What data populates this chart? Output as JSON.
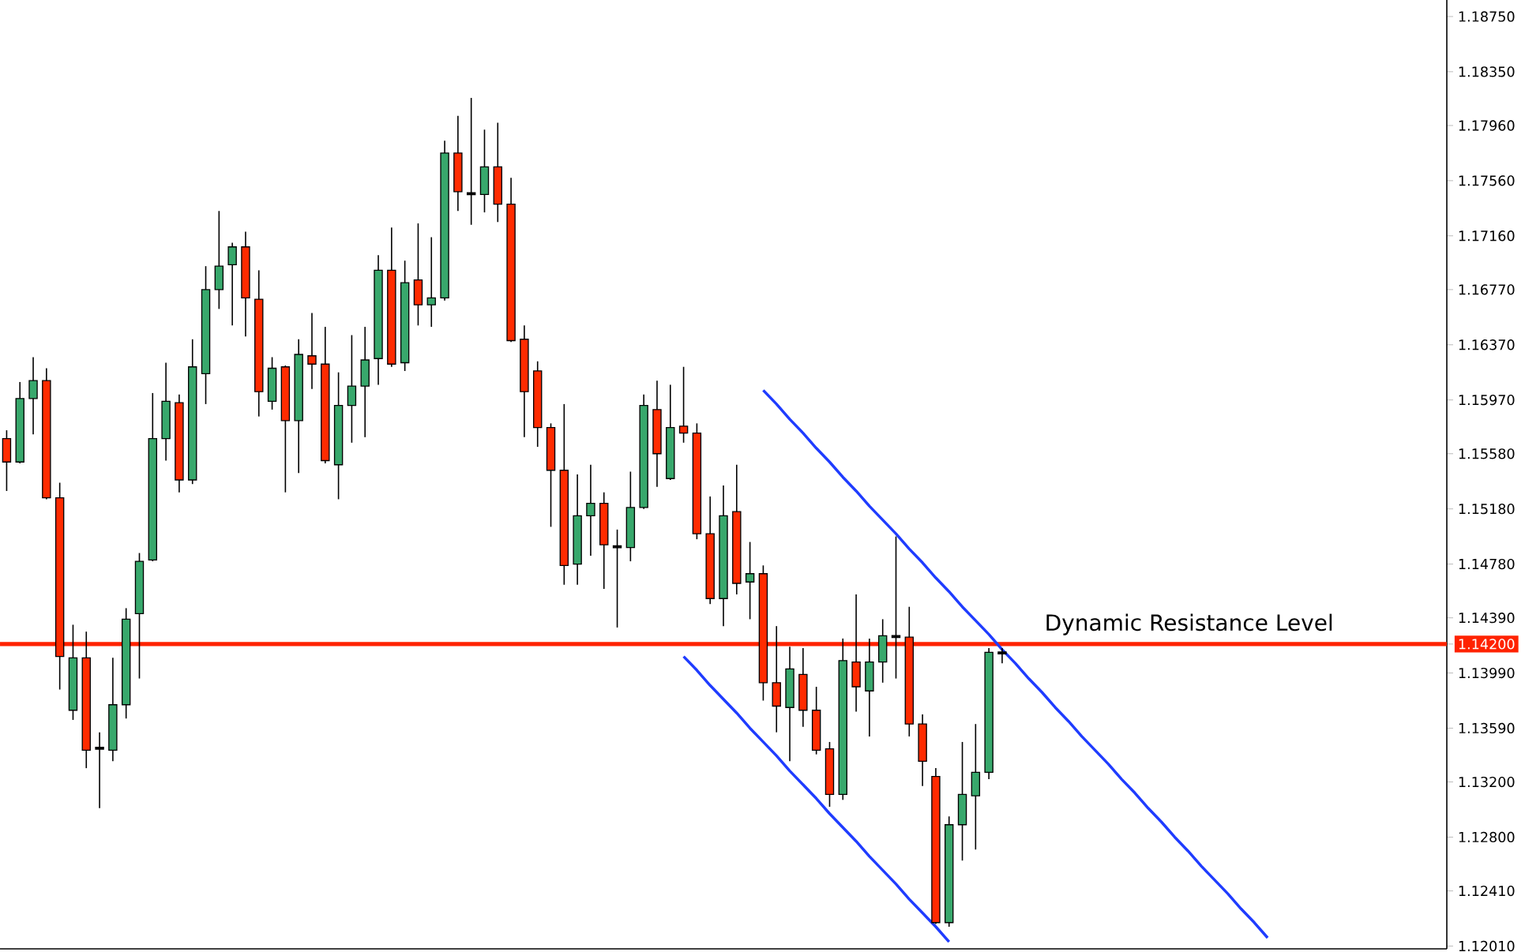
{
  "chart_data": {
    "type": "candlestick",
    "categories": [
      null,
      null,
      null,
      null,
      null,
      null,
      null,
      null,
      null,
      null,
      null,
      null,
      null,
      null,
      null,
      null,
      null,
      null,
      null,
      null,
      null,
      null,
      null,
      null,
      null,
      null,
      null,
      null,
      null,
      null,
      null,
      null,
      null,
      null,
      null,
      null,
      null,
      null,
      null,
      null,
      null,
      null,
      null,
      null,
      null,
      null,
      null,
      null,
      null,
      null,
      null,
      null,
      null,
      null,
      null,
      null,
      null,
      null,
      null,
      null,
      null,
      null,
      null,
      null,
      null,
      null,
      null,
      null,
      null,
      null,
      null,
      null,
      null,
      null,
      null,
      null,
      null,
      null,
      null,
      null,
      null,
      null,
      null,
      null,
      null,
      null,
      null,
      null,
      null,
      null,
      null,
      null,
      null,
      null,
      null,
      null,
      null,
      null,
      null,
      null,
      null,
      null,
      null,
      null,
      null,
      null,
      null,
      null,
      null
    ],
    "ohlc": [
      [
        1.1569,
        1.1575,
        1.1531,
        1.1552
      ],
      [
        1.1552,
        1.161,
        1.1551,
        1.1598
      ],
      [
        1.1598,
        1.1628,
        1.1572,
        1.1611
      ],
      [
        1.1611,
        1.162,
        1.1525,
        1.1526
      ],
      [
        1.1526,
        1.1537,
        1.1387,
        1.1411
      ],
      [
        1.1372,
        1.1434,
        1.1365,
        1.141
      ],
      [
        1.141,
        1.1429,
        1.133,
        1.1343
      ],
      [
        1.1345,
        1.1356,
        1.1301,
        1.1344
      ],
      [
        1.1343,
        1.141,
        1.1335,
        1.1376
      ],
      [
        1.1376,
        1.1446,
        1.1366,
        1.1438
      ],
      [
        1.1442,
        1.1486,
        1.1395,
        1.148
      ],
      [
        1.1481,
        1.1602,
        1.148,
        1.1569
      ],
      [
        1.1569,
        1.1624,
        1.1553,
        1.1596
      ],
      [
        1.1595,
        1.1601,
        1.153,
        1.1539
      ],
      [
        1.1539,
        1.1641,
        1.1536,
        1.1621
      ],
      [
        1.1616,
        1.1694,
        1.1594,
        1.1677
      ],
      [
        1.1677,
        1.1734,
        1.1663,
        1.1694
      ],
      [
        1.1695,
        1.1711,
        1.1651,
        1.1708
      ],
      [
        1.1708,
        1.1719,
        1.1643,
        1.1671
      ],
      [
        1.167,
        1.1691,
        1.1585,
        1.1603
      ],
      [
        1.1596,
        1.1628,
        1.159,
        1.162
      ],
      [
        1.1621,
        1.1622,
        1.153,
        1.1582
      ],
      [
        1.1582,
        1.1641,
        1.1544,
        1.163
      ],
      [
        1.1629,
        1.166,
        1.1605,
        1.1623
      ],
      [
        1.1623,
        1.165,
        1.1551,
        1.1553
      ],
      [
        1.155,
        1.1617,
        1.1525,
        1.1593
      ],
      [
        1.1593,
        1.1644,
        1.1566,
        1.1607
      ],
      [
        1.1607,
        1.165,
        1.157,
        1.1626
      ],
      [
        1.1627,
        1.1702,
        1.1608,
        1.1691
      ],
      [
        1.1691,
        1.1722,
        1.1621,
        1.1623
      ],
      [
        1.1624,
        1.1698,
        1.1618,
        1.1682
      ],
      [
        1.1684,
        1.1725,
        1.1651,
        1.1666
      ],
      [
        1.1666,
        1.1715,
        1.165,
        1.1671
      ],
      [
        1.1671,
        1.1785,
        1.1669,
        1.1776
      ],
      [
        1.1776,
        1.1803,
        1.1734,
        1.1748
      ],
      [
        1.1747,
        1.1816,
        1.1724,
        1.1746
      ],
      [
        1.1746,
        1.1793,
        1.1733,
        1.1766
      ],
      [
        1.1766,
        1.1798,
        1.1726,
        1.1739
      ],
      [
        1.1739,
        1.1758,
        1.1639,
        1.164
      ],
      [
        1.1641,
        1.1651,
        1.157,
        1.1603
      ],
      [
        1.1618,
        1.1625,
        1.1563,
        1.1577
      ],
      [
        1.1577,
        1.158,
        1.1505,
        1.1546
      ],
      [
        1.1546,
        1.1594,
        1.1463,
        1.1477
      ],
      [
        1.1478,
        1.1543,
        1.1463,
        1.1513
      ],
      [
        1.1513,
        1.155,
        1.1484,
        1.1522
      ],
      [
        1.1522,
        1.153,
        1.146,
        1.1492
      ],
      [
        1.1491,
        1.1503,
        1.1432,
        1.149
      ],
      [
        1.149,
        1.1545,
        1.148,
        1.1519
      ],
      [
        1.1519,
        1.1601,
        1.1518,
        1.1593
      ],
      [
        1.159,
        1.1611,
        1.1534,
        1.1558
      ],
      [
        1.154,
        1.1608,
        1.1539,
        1.1577
      ],
      [
        1.1578,
        1.1621,
        1.1566,
        1.1573
      ],
      [
        1.1573,
        1.158,
        1.1496,
        1.15
      ],
      [
        1.15,
        1.1527,
        1.1449,
        1.1453
      ],
      [
        1.1453,
        1.1535,
        1.1433,
        1.1513
      ],
      [
        1.1516,
        1.155,
        1.1456,
        1.1464
      ],
      [
        1.1465,
        1.1494,
        1.1438,
        1.1471
      ],
      [
        1.1471,
        1.1477,
        1.1379,
        1.1392
      ],
      [
        1.1392,
        1.1433,
        1.1356,
        1.1375
      ],
      [
        1.1374,
        1.1418,
        1.1335,
        1.1402
      ],
      [
        1.1398,
        1.1417,
        1.136,
        1.1372
      ],
      [
        1.1372,
        1.1389,
        1.134,
        1.1343
      ],
      [
        1.1344,
        1.1349,
        1.1302,
        1.1311
      ],
      [
        1.1311,
        1.1424,
        1.1307,
        1.1408
      ],
      [
        1.1407,
        1.1456,
        1.1371,
        1.1389
      ],
      [
        1.1386,
        1.1424,
        1.1353,
        1.1407
      ],
      [
        1.1407,
        1.1438,
        1.1392,
        1.1426
      ],
      [
        1.1426,
        1.1498,
        1.1395,
        1.1425
      ],
      [
        1.1425,
        1.1447,
        1.1353,
        1.1362
      ],
      [
        1.1362,
        1.1369,
        1.1317,
        1.1335
      ],
      [
        1.1324,
        1.133,
        1.1217,
        1.1218
      ],
      [
        1.1218,
        1.1295,
        1.1215,
        1.1289
      ],
      [
        1.1289,
        1.1349,
        1.1263,
        1.1311
      ],
      [
        1.131,
        1.1362,
        1.1271,
        1.1327
      ],
      [
        1.1327,
        1.1417,
        1.1322,
        1.1414
      ],
      [
        1.1414,
        1.1417,
        1.1406,
        1.1413
      ],
      null,
      null,
      null,
      null,
      null,
      null,
      null,
      null,
      null,
      null,
      null,
      null,
      null,
      null,
      null,
      null,
      null,
      null,
      null,
      null,
      null,
      null,
      null,
      null,
      null,
      null,
      null,
      null,
      null,
      null,
      null,
      null,
      null
    ],
    "colors": [
      "#ff2b00",
      "#38a86c",
      "#38a86c",
      "#ff2b00",
      "#ff2b00",
      "#38a86c",
      "#ff2b00",
      "#000000",
      "#38a86c",
      "#38a86c",
      "#38a86c",
      "#38a86c",
      "#38a86c",
      "#ff2b00",
      "#38a86c",
      "#38a86c",
      "#38a86c",
      "#38a86c",
      "#ff2b00",
      "#ff2b00",
      "#38a86c",
      "#ff2b00",
      "#38a86c",
      "#ff2b00",
      "#ff2b00",
      "#38a86c",
      "#38a86c",
      "#38a86c",
      "#38a86c",
      "#ff2b00",
      "#38a86c",
      "#ff2b00",
      "#38a86c",
      "#38a86c",
      "#ff2b00",
      "#000000",
      "#38a86c",
      "#ff2b00",
      "#ff2b00",
      "#ff2b00",
      "#ff2b00",
      "#ff2b00",
      "#ff2b00",
      "#38a86c",
      "#38a86c",
      "#ff2b00",
      "#000000",
      "#38a86c",
      "#38a86c",
      "#ff2b00",
      "#38a86c",
      "#ff2b00",
      "#ff2b00",
      "#ff2b00",
      "#38a86c",
      "#ff2b00",
      "#38a86c",
      "#ff2b00",
      "#ff2b00",
      "#38a86c",
      "#ff2b00",
      "#ff2b00",
      "#ff2b00",
      "#38a86c",
      "#ff2b00",
      "#38a86c",
      "#38a86c",
      "#000000",
      "#ff2b00",
      "#ff2b00",
      "#ff2b00",
      "#38a86c",
      "#38a86c",
      "#38a86c",
      "#38a86c",
      "#000000",
      null,
      null,
      null,
      null,
      null,
      null,
      null,
      null,
      null,
      null,
      null,
      null,
      null,
      null,
      null,
      null,
      null,
      null,
      null,
      null,
      null,
      null,
      null,
      null,
      null,
      null,
      null,
      null,
      null,
      null,
      null,
      null,
      null
    ],
    "series": [
      {
        "type": "line",
        "color": "#1f3cff",
        "values": [
          null,
          null,
          null,
          null,
          null,
          null,
          null,
          null,
          null,
          null,
          null,
          null,
          null,
          null,
          null,
          null,
          null,
          null,
          null,
          null,
          null,
          null,
          null,
          null,
          null,
          null,
          null,
          null,
          null,
          null,
          null,
          null,
          null,
          null,
          null,
          null,
          null,
          null,
          null,
          null,
          null,
          null,
          null,
          null,
          null,
          null,
          null,
          null,
          null,
          null,
          null,
          null,
          null,
          null,
          null,
          null,
          null,
          1.1604,
          1.1594,
          1.1583,
          1.1573,
          1.1562,
          1.1552,
          1.1541,
          1.1531,
          1.152,
          1.151,
          1.15,
          1.1489,
          1.1479,
          1.1468,
          1.1458,
          1.1447,
          1.1437,
          1.1427,
          1.1416,
          1.1406,
          1.1395,
          1.1385,
          1.1374,
          1.1364,
          1.1353,
          1.1343,
          1.1333,
          1.1322,
          1.1312,
          1.1301,
          1.1291,
          1.128,
          1.127,
          1.1259,
          1.1249,
          1.1239,
          1.1228,
          1.1218,
          1.1207,
          null,
          null,
          null,
          null,
          null,
          null,
          null,
          null,
          null,
          null,
          null,
          null,
          null
        ]
      },
      {
        "type": "line",
        "color": "#1f3cff",
        "values": [
          null,
          null,
          null,
          null,
          null,
          null,
          null,
          null,
          null,
          null,
          null,
          null,
          null,
          null,
          null,
          null,
          null,
          null,
          null,
          null,
          null,
          null,
          null,
          null,
          null,
          null,
          null,
          null,
          null,
          null,
          null,
          null,
          null,
          null,
          null,
          null,
          null,
          null,
          null,
          null,
          null,
          null,
          null,
          null,
          null,
          null,
          null,
          null,
          null,
          null,
          null,
          1.1411,
          1.1401,
          1.139,
          1.138,
          1.137,
          1.1359,
          1.1349,
          1.1339,
          1.1328,
          1.1318,
          1.1308,
          1.1297,
          1.1287,
          1.1277,
          1.1266,
          1.1256,
          1.1246,
          1.1235,
          1.1225,
          1.1215,
          1.1204,
          null,
          null,
          null,
          null,
          null,
          null,
          null,
          null,
          null,
          null,
          null,
          null,
          null,
          null,
          null,
          null,
          null,
          null,
          null,
          null,
          null,
          null,
          null,
          null,
          null,
          null,
          null,
          null,
          null,
          null,
          null,
          null,
          null,
          null,
          null,
          null,
          null
        ]
      }
    ],
    "ylim": [
      1.1199,
      1.1887
    ],
    "yticks": [
      {
        "value": 1.1875,
        "label": "1.18750"
      },
      {
        "value": 1.1835,
        "label": "1.18350"
      },
      {
        "value": 1.1796,
        "label": "1.17960"
      },
      {
        "value": 1.1756,
        "label": "1.17560"
      },
      {
        "value": 1.1716,
        "label": "1.17160"
      },
      {
        "value": 1.1677,
        "label": "1.16770"
      },
      {
        "value": 1.1637,
        "label": "1.16370"
      },
      {
        "value": 1.1597,
        "label": "1.15970"
      },
      {
        "value": 1.1558,
        "label": "1.15580"
      },
      {
        "value": 1.1518,
        "label": "1.15180"
      },
      {
        "value": 1.1478,
        "label": "1.14780"
      },
      {
        "value": 1.1439,
        "label": "1.14390"
      },
      {
        "value": 1.142,
        "label": "1.14200"
      },
      {
        "value": 1.1399,
        "label": "1.13990"
      },
      {
        "value": 1.1359,
        "label": "1.13590"
      },
      {
        "value": 1.132,
        "label": "1.13200"
      },
      {
        "value": 1.128,
        "label": "1.12800"
      },
      {
        "value": 1.1241,
        "label": "1.12410"
      },
      {
        "value": 1.1201,
        "label": "1.12010"
      }
    ],
    "tick_labels": "y",
    "ref_lines": [
      {
        "axis": "y",
        "value": 1.142,
        "label": "Dynamic Resistance Level",
        "color": "#ff2200"
      }
    ]
  }
}
